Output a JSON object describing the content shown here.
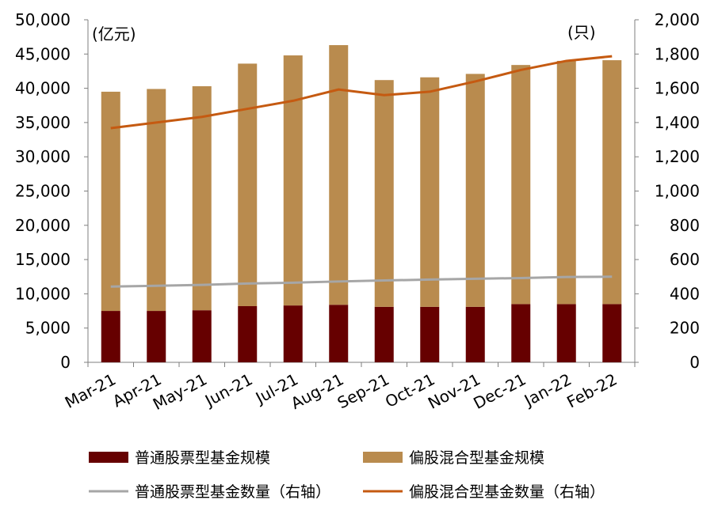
{
  "chart_data": {
    "type": "bar",
    "stacked": true,
    "categories": [
      "Mar-21",
      "Apr-21",
      "May-21",
      "Jun-21",
      "Jul-21",
      "Aug-21",
      "Sep-21",
      "Oct-21",
      "Nov-21",
      "Dec-21",
      "Jan-22",
      "Feb-22"
    ],
    "left_unit": "(亿元)",
    "right_unit": "(只)",
    "ylim_left": [
      0,
      50000
    ],
    "ylim_right": [
      0,
      2000
    ],
    "left_ticks": [
      "0",
      "5,000",
      "10,000",
      "15,000",
      "20,000",
      "25,000",
      "30,000",
      "35,000",
      "40,000",
      "45,000",
      "50,000"
    ],
    "right_ticks": [
      "0",
      "200",
      "400",
      "600",
      "800",
      "1,000",
      "1,200",
      "1,400",
      "1,600",
      "1,800",
      "2,000"
    ],
    "bar_series": [
      {
        "name": "普通股票型基金规模",
        "color": "#660000",
        "values": [
          7500,
          7500,
          7600,
          8200,
          8300,
          8400,
          8100,
          8100,
          8100,
          8500,
          8500,
          8500
        ]
      },
      {
        "name": "偏股混合型基金规模",
        "color": "#b98b4e",
        "values": [
          32000,
          32400,
          32700,
          35400,
          36500,
          37900,
          33100,
          33500,
          34000,
          34900,
          35500,
          35600
        ]
      }
    ],
    "line_series": [
      {
        "name": "普通股票型基金数量（右轴）",
        "color": "#a6a6a6",
        "axis": "right",
        "values": [
          442,
          447,
          452,
          460,
          465,
          472,
          478,
          483,
          488,
          492,
          498,
          500
        ]
      },
      {
        "name": "偏股混合型基金数量（右轴）",
        "color": "#c55a11",
        "axis": "right",
        "values": [
          1367,
          1400,
          1433,
          1480,
          1527,
          1593,
          1560,
          1580,
          1640,
          1707,
          1760,
          1787
        ]
      }
    ],
    "legend_position": "bottom",
    "grid": false
  }
}
